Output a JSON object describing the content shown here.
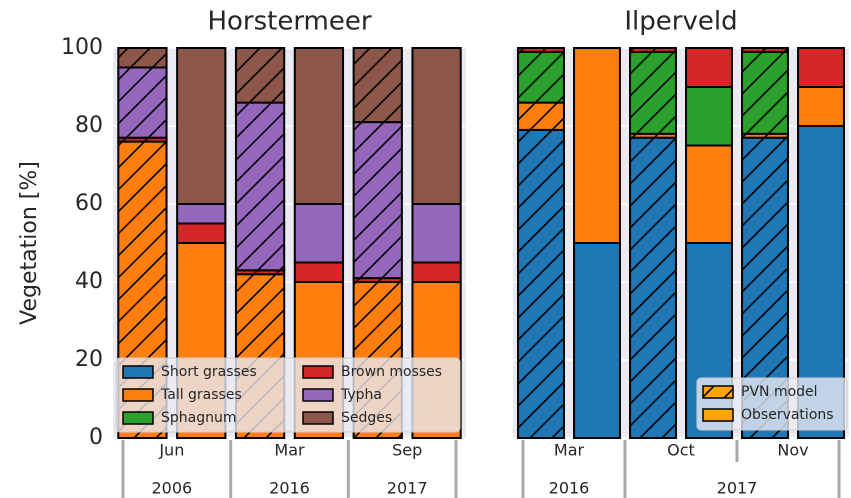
{
  "chart_data": {
    "type": "bar",
    "stacked": true,
    "ylabel": "Vegetation [%]",
    "ylim": [
      0,
      100
    ],
    "yticks": [
      0,
      20,
      40,
      60,
      80,
      100
    ],
    "grid": true,
    "legend": "lower left",
    "variant_legend": "lower right",
    "variants": [
      "PVN model",
      "Observations"
    ],
    "variant_color": "#ffa500",
    "series": [
      {
        "name": "Short grasses",
        "color": "#1f77b4"
      },
      {
        "name": "Tall grasses",
        "color": "#ff7f0e"
      },
      {
        "name": "Sphagnum",
        "color": "#2ca02c"
      },
      {
        "name": "Brown mosses",
        "color": "#d62728"
      },
      {
        "name": "Typha",
        "color": "#9467bd"
      },
      {
        "name": "Sedges",
        "color": "#8c564b"
      }
    ],
    "panels": [
      {
        "title": "Horstermeer",
        "categories": [
          "Jun",
          "Mar",
          "Sep"
        ],
        "year_groups": [
          {
            "label": "2006",
            "count": 1
          },
          {
            "label": "2016",
            "count": 1
          },
          {
            "label": "2017",
            "count": 1
          }
        ],
        "series": [
          {
            "model": [
              0,
              0,
              0
            ],
            "observations": [
              0,
              0,
              0
            ]
          },
          {
            "model": [
              76,
              42,
              40
            ],
            "observations": [
              50,
              40,
              40
            ]
          },
          {
            "model": [
              0,
              0,
              0
            ],
            "observations": [
              0,
              0,
              0
            ]
          },
          {
            "model": [
              1,
              1,
              1
            ],
            "observations": [
              5,
              5,
              5
            ]
          },
          {
            "model": [
              18,
              43,
              40
            ],
            "observations": [
              5,
              15,
              15
            ]
          },
          {
            "model": [
              5,
              14,
              19
            ],
            "observations": [
              40,
              40,
              40
            ]
          }
        ]
      },
      {
        "title": "Ilperveld",
        "categories": [
          "Mar",
          "Oct",
          "Nov"
        ],
        "year_groups": [
          {
            "label": "2016",
            "count": 1
          },
          {
            "label": "2017",
            "count": 2
          }
        ],
        "series": [
          {
            "model": [
              79,
              77,
              77
            ],
            "observations": [
              50,
              50,
              80
            ]
          },
          {
            "model": [
              7,
              1,
              1
            ],
            "observations": [
              50,
              25,
              10
            ]
          },
          {
            "model": [
              13,
              21,
              21
            ],
            "observations": [
              0,
              15,
              0
            ]
          },
          {
            "model": [
              1,
              1,
              1
            ],
            "observations": [
              0,
              10,
              10
            ]
          },
          {
            "model": [
              0,
              0,
              0
            ],
            "observations": [
              0,
              0,
              0
            ]
          },
          {
            "model": [
              0,
              0,
              0
            ],
            "observations": [
              0,
              0,
              0
            ]
          }
        ]
      }
    ]
  }
}
